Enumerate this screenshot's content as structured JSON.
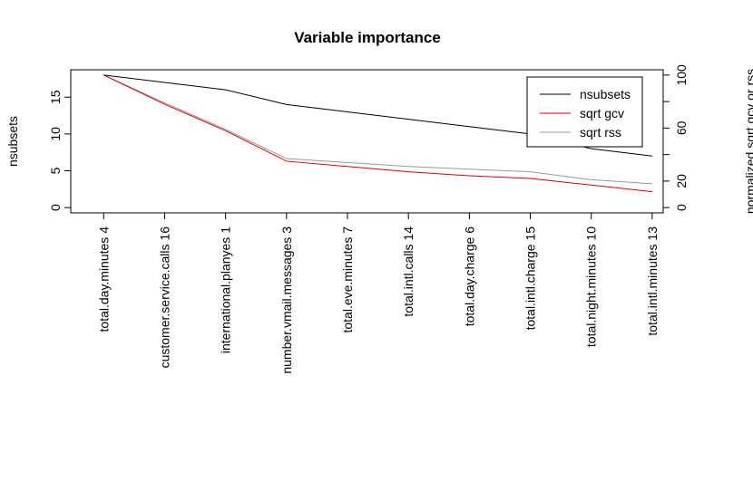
{
  "chart_data": {
    "type": "line",
    "title": "Variable importance",
    "ylabel": "nsubsets",
    "y2label": "normalized sqrt gcv or rss",
    "categories": [
      "total.day.minutes  4",
      "customer.service.calls  16",
      "international.planyes  1",
      "number.vmail.messages  3",
      "total.eve.minutes  7",
      "total.intl.calls  14",
      "total.day.charge  6",
      "total.intl.charge  15",
      "total.night.minutes  10",
      "total.intl.minutes  13"
    ],
    "series": [
      {
        "name": "nsubsets",
        "color": "#000000",
        "values": [
          18,
          17,
          16,
          14,
          13,
          12,
          11,
          10,
          8,
          7
        ]
      },
      {
        "name": "sqrt gcv",
        "color": "#dd0000",
        "axis": "y2",
        "values": [
          100,
          78,
          58,
          35,
          31,
          27,
          24,
          22,
          17,
          12
        ]
      },
      {
        "name": "sqrt rss",
        "color": "#999999",
        "axis": "y2",
        "values": [
          100,
          79,
          59,
          37,
          34,
          31,
          29,
          27,
          21,
          18
        ]
      }
    ],
    "ylim": [
      -0.72,
      18.72
    ],
    "yticks": [
      0,
      5,
      10,
      15
    ],
    "y2lim": [
      -4,
      104
    ],
    "y2ticks": [
      0,
      20,
      60,
      100
    ],
    "y2minor_ticks": [
      40,
      80
    ],
    "legend": "top-right",
    "grid": false
  }
}
